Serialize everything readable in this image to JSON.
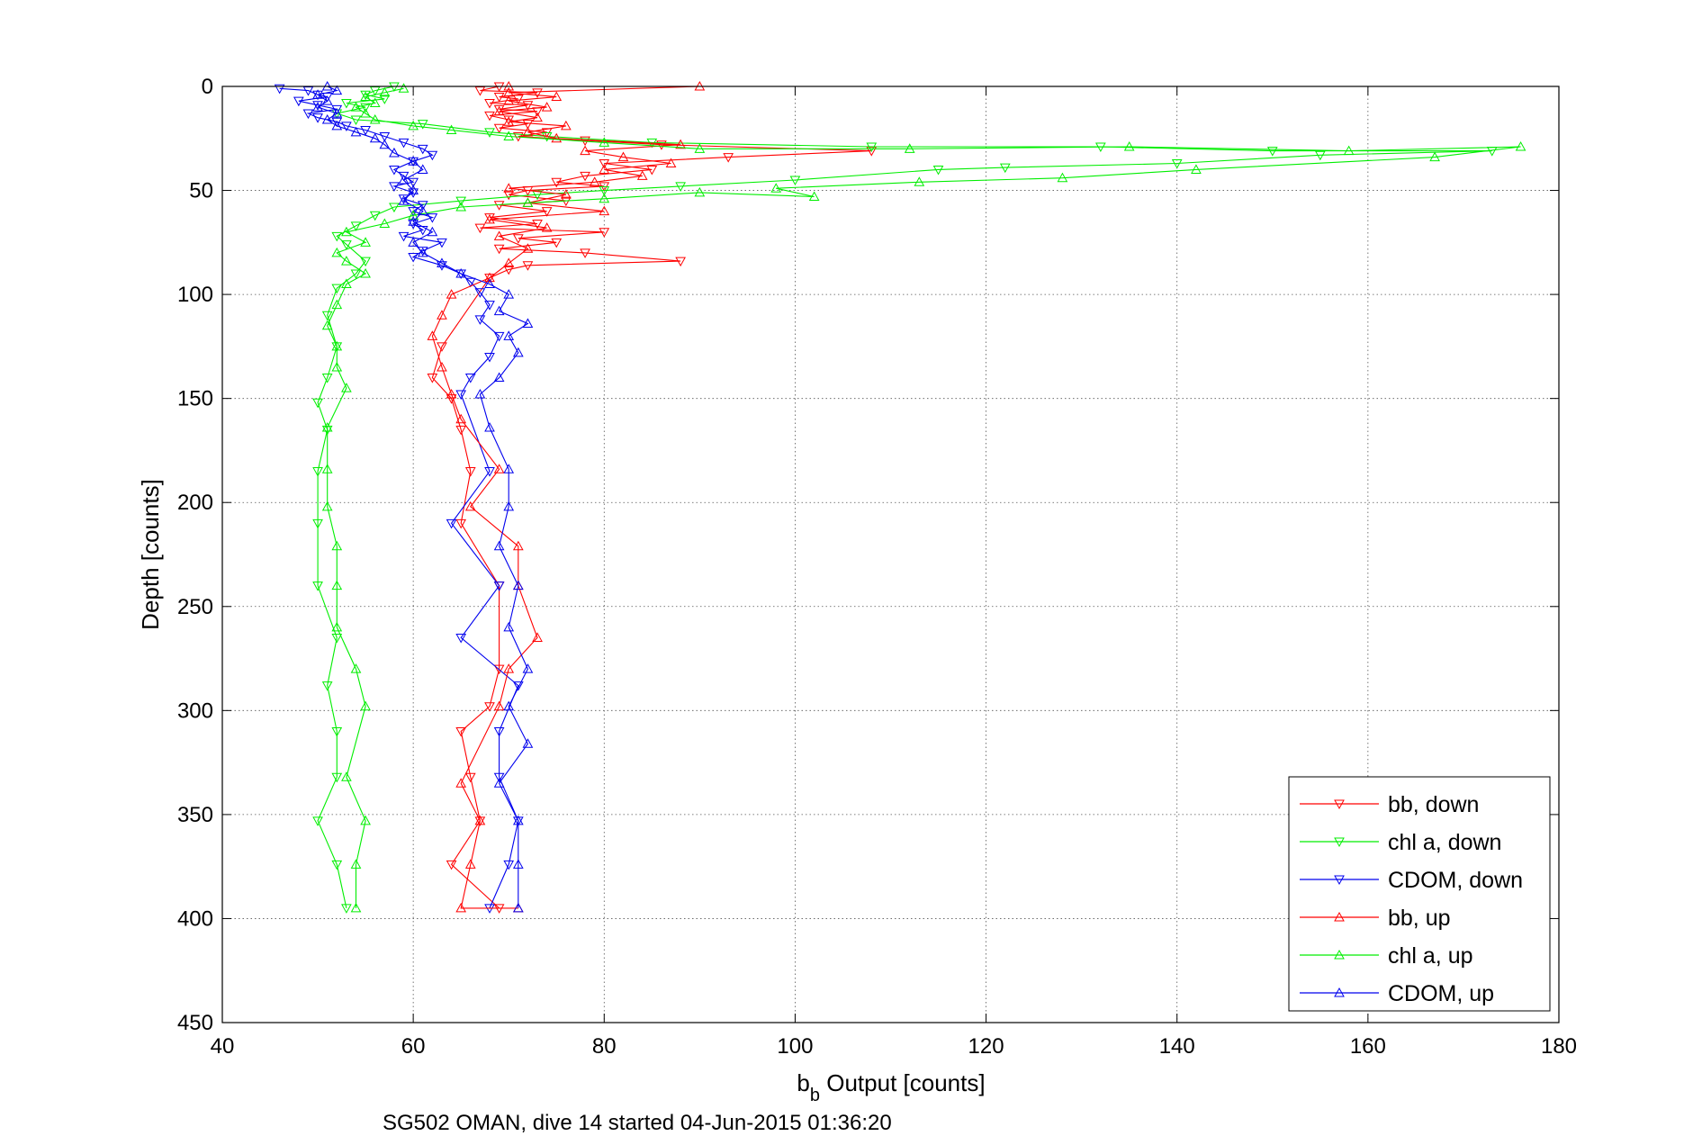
{
  "chart_data": {
    "type": "line",
    "title": "",
    "xlabel_main": "b",
    "xlabel_sub": "b",
    "xlabel_rest": " Output [counts]",
    "ylabel": "Depth [counts]",
    "caption": "SG502 OMAN, dive 14 started 04-Jun-2015 01:36:20",
    "xlim": [
      40,
      180
    ],
    "ylim": [
      450,
      0
    ],
    "xticks": [
      40,
      60,
      80,
      100,
      120,
      140,
      160,
      180
    ],
    "yticks": [
      0,
      50,
      100,
      150,
      200,
      250,
      300,
      350,
      400,
      450
    ],
    "grid": true,
    "legend_placement": "bottom-right",
    "series": [
      {
        "name": "bb, down",
        "color": "#ff0000",
        "marker": "triangle-down",
        "points": [
          [
            69,
            0
          ],
          [
            67,
            2
          ],
          [
            73,
            3
          ],
          [
            69,
            5
          ],
          [
            71,
            6
          ],
          [
            68,
            8
          ],
          [
            72,
            9
          ],
          [
            69,
            11
          ],
          [
            73,
            12
          ],
          [
            68,
            14
          ],
          [
            70,
            16
          ],
          [
            72,
            18
          ],
          [
            69,
            20
          ],
          [
            74,
            22
          ],
          [
            71,
            24
          ],
          [
            78,
            26
          ],
          [
            86,
            28
          ],
          [
            108,
            31
          ],
          [
            93,
            34
          ],
          [
            80,
            37
          ],
          [
            85,
            40
          ],
          [
            78,
            43
          ],
          [
            75,
            46
          ],
          [
            80,
            48
          ],
          [
            72,
            50
          ],
          [
            70,
            52
          ],
          [
            76,
            55
          ],
          [
            69,
            57
          ],
          [
            74,
            60
          ],
          [
            68,
            63
          ],
          [
            73,
            66
          ],
          [
            67,
            68
          ],
          [
            80,
            70
          ],
          [
            71,
            73
          ],
          [
            75,
            75
          ],
          [
            69,
            78
          ],
          [
            78,
            80
          ],
          [
            88,
            84
          ],
          [
            72,
            86
          ],
          [
            70,
            88
          ],
          [
            68,
            92
          ],
          [
            63,
            125
          ],
          [
            62,
            140
          ],
          [
            64,
            150
          ],
          [
            65,
            165
          ],
          [
            66,
            185
          ],
          [
            65,
            210
          ],
          [
            69,
            240
          ],
          [
            69,
            280
          ],
          [
            68,
            298
          ],
          [
            65,
            310
          ],
          [
            66,
            332
          ],
          [
            67,
            353
          ],
          [
            64,
            374
          ],
          [
            69,
            395
          ]
        ]
      },
      {
        "name": "chl a, down",
        "color": "#00ee00",
        "marker": "triangle-down",
        "points": [
          [
            58,
            0
          ],
          [
            56,
            2
          ],
          [
            55,
            4
          ],
          [
            57,
            6
          ],
          [
            53,
            8
          ],
          [
            55,
            10
          ],
          [
            52,
            13
          ],
          [
            54,
            16
          ],
          [
            61,
            18
          ],
          [
            68,
            22
          ],
          [
            74,
            24
          ],
          [
            85,
            27
          ],
          [
            108,
            29
          ],
          [
            132,
            29
          ],
          [
            150,
            31
          ],
          [
            173,
            31
          ],
          [
            155,
            33
          ],
          [
            140,
            37
          ],
          [
            122,
            39
          ],
          [
            115,
            40
          ],
          [
            100,
            45
          ],
          [
            88,
            48
          ],
          [
            80,
            50
          ],
          [
            73,
            52
          ],
          [
            65,
            55
          ],
          [
            58,
            58
          ],
          [
            56,
            62
          ],
          [
            54,
            67
          ],
          [
            52,
            72
          ],
          [
            53,
            76
          ],
          [
            55,
            84
          ],
          [
            54,
            90
          ],
          [
            52,
            97
          ],
          [
            51,
            110
          ],
          [
            52,
            125
          ],
          [
            51,
            140
          ],
          [
            50,
            152
          ],
          [
            51,
            165
          ],
          [
            50,
            185
          ],
          [
            50,
            210
          ],
          [
            50,
            240
          ],
          [
            52,
            265
          ],
          [
            51,
            288
          ],
          [
            52,
            310
          ],
          [
            52,
            332
          ],
          [
            50,
            353
          ],
          [
            52,
            374
          ],
          [
            53,
            395
          ]
        ]
      },
      {
        "name": "CDOM, down",
        "color": "#0000ee",
        "marker": "triangle-down",
        "points": [
          [
            46,
            1
          ],
          [
            49,
            2
          ],
          [
            50,
            4
          ],
          [
            51,
            5
          ],
          [
            48,
            7
          ],
          [
            50,
            9
          ],
          [
            52,
            11
          ],
          [
            49,
            13
          ],
          [
            50,
            15
          ],
          [
            52,
            17
          ],
          [
            53,
            19
          ],
          [
            55,
            21
          ],
          [
            57,
            24
          ],
          [
            59,
            27
          ],
          [
            61,
            30
          ],
          [
            62,
            33
          ],
          [
            60,
            36
          ],
          [
            58,
            40
          ],
          [
            59,
            43
          ],
          [
            60,
            46
          ],
          [
            58,
            48
          ],
          [
            60,
            51
          ],
          [
            59,
            54
          ],
          [
            61,
            57
          ],
          [
            60,
            60
          ],
          [
            62,
            63
          ],
          [
            60,
            66
          ],
          [
            61,
            69
          ],
          [
            59,
            72
          ],
          [
            63,
            75
          ],
          [
            61,
            79
          ],
          [
            60,
            82
          ],
          [
            63,
            86
          ],
          [
            65,
            90
          ],
          [
            66,
            94
          ],
          [
            67,
            99
          ],
          [
            68,
            105
          ],
          [
            67,
            112
          ],
          [
            69,
            120
          ],
          [
            68,
            130
          ],
          [
            66,
            140
          ],
          [
            65,
            148
          ],
          [
            68,
            185
          ],
          [
            64,
            210
          ],
          [
            69,
            240
          ],
          [
            65,
            265
          ],
          [
            71,
            288
          ],
          [
            69,
            310
          ],
          [
            69,
            332
          ],
          [
            71,
            353
          ],
          [
            70,
            374
          ],
          [
            68,
            395
          ]
        ]
      },
      {
        "name": "bb, up",
        "color": "#ff0000",
        "marker": "triangle-up",
        "points": [
          [
            71,
            395
          ],
          [
            65,
            395
          ],
          [
            66,
            374
          ],
          [
            67,
            353
          ],
          [
            65,
            335
          ],
          [
            69,
            298
          ],
          [
            70,
            280
          ],
          [
            73,
            265
          ],
          [
            71,
            240
          ],
          [
            71,
            221
          ],
          [
            66,
            202
          ],
          [
            69,
            184
          ],
          [
            65,
            160
          ],
          [
            64,
            148
          ],
          [
            63,
            135
          ],
          [
            62,
            120
          ],
          [
            63,
            110
          ],
          [
            64,
            100
          ],
          [
            68,
            92
          ],
          [
            70,
            85
          ],
          [
            72,
            78
          ],
          [
            69,
            72
          ],
          [
            74,
            68
          ],
          [
            68,
            64
          ],
          [
            80,
            60
          ],
          [
            72,
            56
          ],
          [
            76,
            52
          ],
          [
            70,
            49
          ],
          [
            79,
            46
          ],
          [
            84,
            43
          ],
          [
            80,
            40
          ],
          [
            87,
            37
          ],
          [
            82,
            34
          ],
          [
            78,
            31
          ],
          [
            88,
            28
          ],
          [
            75,
            25
          ],
          [
            72,
            22
          ],
          [
            76,
            19
          ],
          [
            70,
            17
          ],
          [
            73,
            15
          ],
          [
            69,
            12
          ],
          [
            74,
            10
          ],
          [
            70,
            7
          ],
          [
            75,
            5
          ],
          [
            70,
            3
          ],
          [
            90,
            0
          ],
          [
            70,
            0
          ]
        ]
      },
      {
        "name": "chl a, up",
        "color": "#00ee00",
        "marker": "triangle-up",
        "points": [
          [
            54,
            395
          ],
          [
            54,
            374
          ],
          [
            55,
            353
          ],
          [
            53,
            332
          ],
          [
            55,
            298
          ],
          [
            54,
            280
          ],
          [
            52,
            260
          ],
          [
            52,
            240
          ],
          [
            52,
            221
          ],
          [
            51,
            202
          ],
          [
            51,
            184
          ],
          [
            51,
            164
          ],
          [
            53,
            145
          ],
          [
            52,
            135
          ],
          [
            52,
            125
          ],
          [
            51,
            115
          ],
          [
            52,
            105
          ],
          [
            53,
            95
          ],
          [
            55,
            90
          ],
          [
            53,
            84
          ],
          [
            52,
            80
          ],
          [
            55,
            75
          ],
          [
            53,
            70
          ],
          [
            57,
            66
          ],
          [
            60,
            62
          ],
          [
            65,
            58
          ],
          [
            72,
            56
          ],
          [
            80,
            54
          ],
          [
            90,
            51
          ],
          [
            102,
            53
          ],
          [
            98,
            49
          ],
          [
            113,
            46
          ],
          [
            128,
            44
          ],
          [
            142,
            40
          ],
          [
            167,
            34
          ],
          [
            176,
            29
          ],
          [
            158,
            31
          ],
          [
            135,
            29
          ],
          [
            112,
            30
          ],
          [
            90,
            30
          ],
          [
            80,
            27
          ],
          [
            70,
            24
          ],
          [
            64,
            21
          ],
          [
            60,
            19
          ],
          [
            56,
            16
          ],
          [
            55,
            13
          ],
          [
            54,
            10
          ],
          [
            56,
            8
          ],
          [
            55,
            5
          ],
          [
            57,
            3
          ],
          [
            59,
            1
          ]
        ]
      },
      {
        "name": "CDOM, up",
        "color": "#0000ee",
        "marker": "triangle-up",
        "points": [
          [
            71,
            395
          ],
          [
            71,
            374
          ],
          [
            71,
            353
          ],
          [
            69,
            335
          ],
          [
            72,
            316
          ],
          [
            70,
            298
          ],
          [
            72,
            280
          ],
          [
            70,
            260
          ],
          [
            71,
            240
          ],
          [
            69,
            221
          ],
          [
            70,
            202
          ],
          [
            70,
            184
          ],
          [
            68,
            164
          ],
          [
            67,
            148
          ],
          [
            69,
            140
          ],
          [
            71,
            128
          ],
          [
            70,
            120
          ],
          [
            72,
            114
          ],
          [
            69,
            108
          ],
          [
            70,
            100
          ],
          [
            68,
            95
          ],
          [
            65,
            90
          ],
          [
            63,
            85
          ],
          [
            61,
            80
          ],
          [
            60,
            75
          ],
          [
            62,
            70
          ],
          [
            60,
            65
          ],
          [
            61,
            60
          ],
          [
            59,
            55
          ],
          [
            60,
            50
          ],
          [
            59,
            45
          ],
          [
            61,
            40
          ],
          [
            60,
            36
          ],
          [
            58,
            32
          ],
          [
            57,
            28
          ],
          [
            56,
            25
          ],
          [
            54,
            22
          ],
          [
            52,
            19
          ],
          [
            51,
            16
          ],
          [
            52,
            13
          ],
          [
            50,
            10
          ],
          [
            51,
            7
          ],
          [
            50,
            4
          ],
          [
            52,
            2
          ],
          [
            51,
            0
          ]
        ]
      }
    ],
    "legend": [
      "bb, down",
      "chl a, down",
      "CDOM, down",
      "bb, up",
      "chl a, up",
      "CDOM, up"
    ]
  }
}
